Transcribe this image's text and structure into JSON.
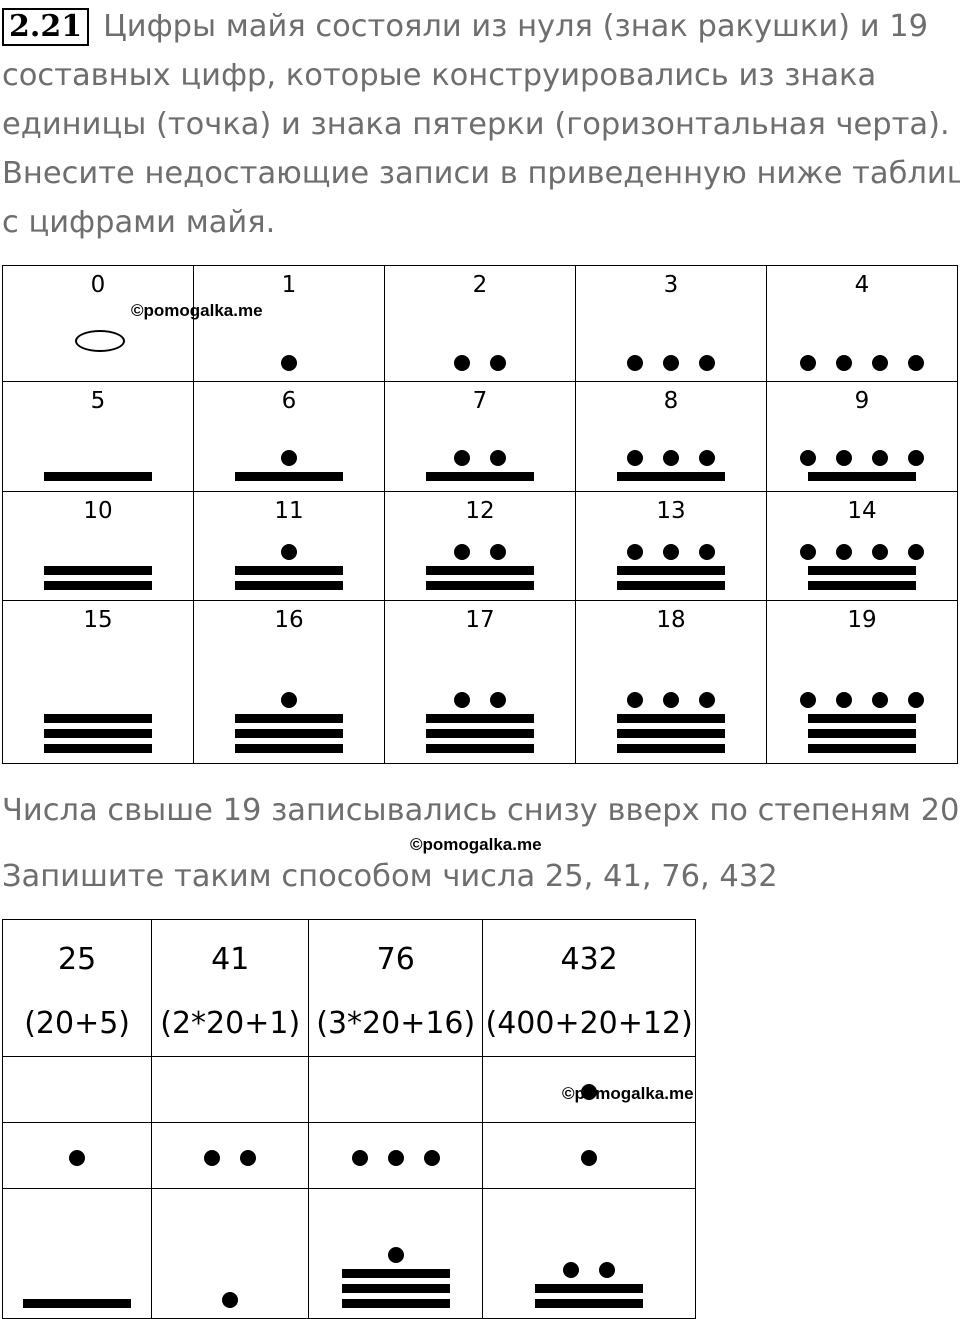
{
  "exercise_number": "2.21",
  "intro_lines": [
    "Цифры майя состояли из нуля (знак ракушки) и 19",
    "составных цифр, которые конструировались из знака",
    "единицы (точка) и знака пятерки (горизонтальная черта).",
    "Внесите недостающие записи в приведенную ниже таблицу",
    "с цифрами майя."
  ],
  "digits_table": [
    [
      "0",
      "1",
      "2",
      "3",
      "4"
    ],
    [
      "5",
      "6",
      "7",
      "8",
      "9"
    ],
    [
      "10",
      "11",
      "12",
      "13",
      "14"
    ],
    [
      "15",
      "16",
      "17",
      "18",
      "19"
    ]
  ],
  "zero_icon": "shell-icon",
  "middle_text": "Числа свыше 19 записывались снизу вверх по степеням 20.",
  "task_text": "Запишите таким способом числа 25, 41, 76, 432",
  "watermark": "©pomogalka.me",
  "numbers_table": {
    "columns": [
      {
        "number": "25",
        "expansion": "(20+5)",
        "levels": [
          null,
          1,
          5
        ]
      },
      {
        "number": "41",
        "expansion": "(2*20+1)",
        "levels": [
          null,
          2,
          1
        ]
      },
      {
        "number": "76",
        "expansion": "(3*20+16)",
        "levels": [
          null,
          3,
          16
        ]
      },
      {
        "number": "432",
        "expansion": "(400+20+12)",
        "levels": [
          1,
          1,
          12
        ]
      }
    ]
  }
}
